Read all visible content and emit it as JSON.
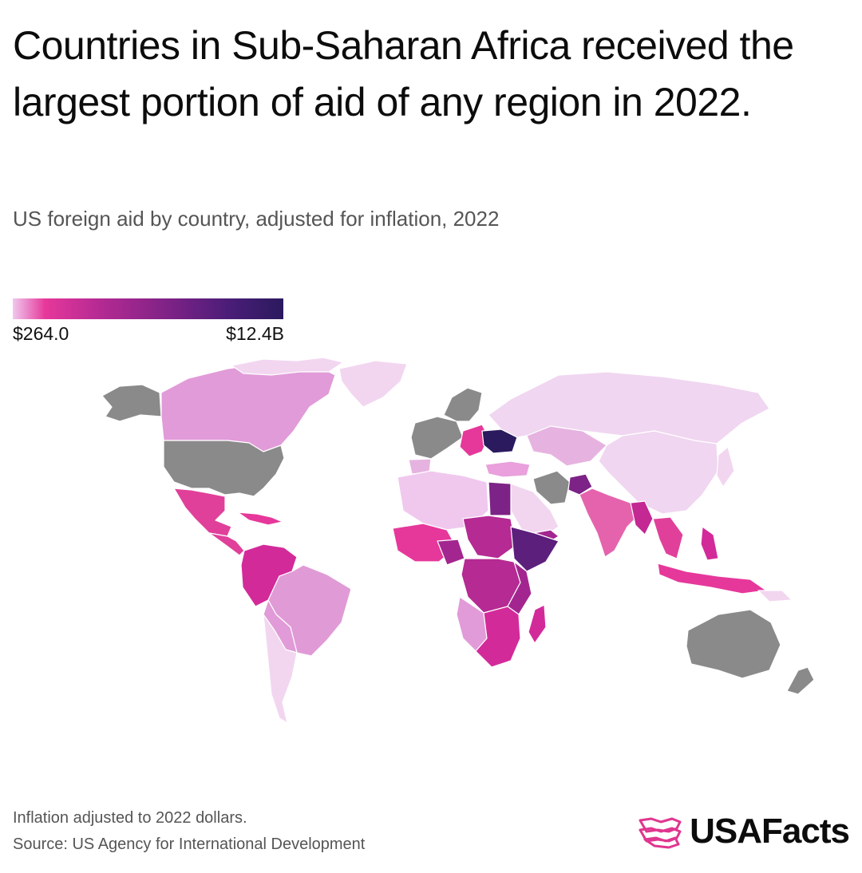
{
  "title": "Countries in Sub-Saharan Africa received the largest portion of aid of any region in 2022.",
  "subtitle": "US foreign aid by country, adjusted for inflation, 2022",
  "legend": {
    "min_label": "$264.0",
    "max_label": "$12.4B",
    "colors": [
      "#f0c8ee",
      "#e6389a",
      "#b52a93",
      "#7d2286",
      "#4a1d78",
      "#2b1a5e"
    ],
    "no_data_color": "#8a8a8a"
  },
  "footer": {
    "note": "Inflation adjusted to 2022 dollars.",
    "source": "Source: US Agency for International Development",
    "brand": "USAFacts",
    "brand_color": "#e0358f"
  }
}
